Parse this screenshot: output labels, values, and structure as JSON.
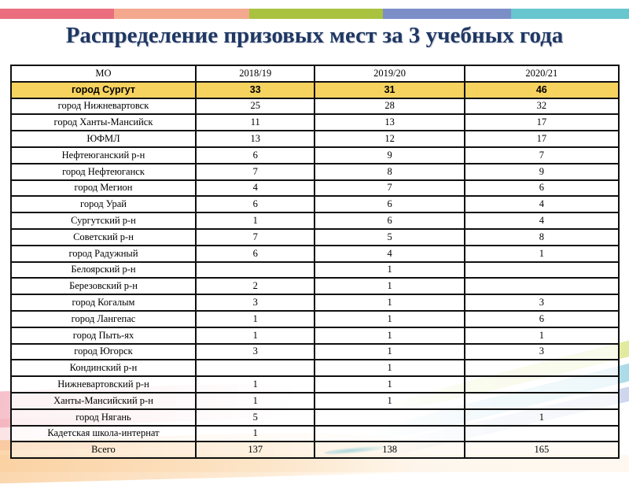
{
  "slide": {
    "title": "Распределение призовых мест за 3 учебных года",
    "title_color": "#1f3864",
    "stripe_colors": [
      "#ea6e7e",
      "#f4a98e",
      "#a9c23f",
      "#7b8ec8",
      "#67c6ce"
    ],
    "highlight_color": "#f6d25f"
  },
  "table": {
    "headers": [
      "МО",
      "2018/19",
      "2019/20",
      "2020/21"
    ],
    "highlight_row": {
      "label": "город Сургут",
      "values": [
        "33",
        "31",
        "46"
      ]
    },
    "rows": [
      {
        "label": "город Нижневартовск",
        "values": [
          "25",
          "28",
          "32"
        ]
      },
      {
        "label": "город Ханты-Мансийск",
        "values": [
          "11",
          "13",
          "17"
        ]
      },
      {
        "label": "ЮФМЛ",
        "values": [
          "13",
          "12",
          "17"
        ]
      },
      {
        "label": "Нефтеюганский р-н",
        "values": [
          "6",
          "9",
          "7"
        ]
      },
      {
        "label": "город Нефтеюганск",
        "values": [
          "7",
          "8",
          "9"
        ]
      },
      {
        "label": "город Мегион",
        "values": [
          "4",
          "7",
          "6"
        ]
      },
      {
        "label": "город Урай",
        "values": [
          "6",
          "6",
          "4"
        ]
      },
      {
        "label": "Сургутский р-н",
        "values": [
          "1",
          "6",
          "4"
        ]
      },
      {
        "label": "Советский р-н",
        "values": [
          "7",
          "5",
          "8"
        ]
      },
      {
        "label": "город Радужный",
        "values": [
          "6",
          "4",
          "1"
        ]
      },
      {
        "label": "Белоярский р-н",
        "values": [
          "",
          "1",
          ""
        ]
      },
      {
        "label": "Березовский р-н",
        "values": [
          "2",
          "1",
          ""
        ]
      },
      {
        "label": "город Когалым",
        "values": [
          "3",
          "1",
          "3"
        ]
      },
      {
        "label": "город Лангепас",
        "values": [
          "1",
          "1",
          "6"
        ]
      },
      {
        "label": "город Пыть-ях",
        "values": [
          "1",
          "1",
          "1"
        ]
      },
      {
        "label": "город Югорск",
        "values": [
          "3",
          "1",
          "3"
        ]
      },
      {
        "label": "Кондинский р-н",
        "values": [
          "",
          "1",
          ""
        ]
      },
      {
        "label": "Нижневартовский р-н",
        "values": [
          "1",
          "1",
          ""
        ]
      },
      {
        "label": "Ханты-Мансийский р-н",
        "values": [
          "1",
          "1",
          ""
        ]
      },
      {
        "label": "город Нягань",
        "values": [
          "5",
          "",
          "1"
        ]
      },
      {
        "label": "Кадетская школа-интернат",
        "values": [
          "1",
          "",
          ""
        ]
      }
    ],
    "total_row": {
      "label": "Всего",
      "values": [
        "137",
        "138",
        "165"
      ]
    }
  }
}
